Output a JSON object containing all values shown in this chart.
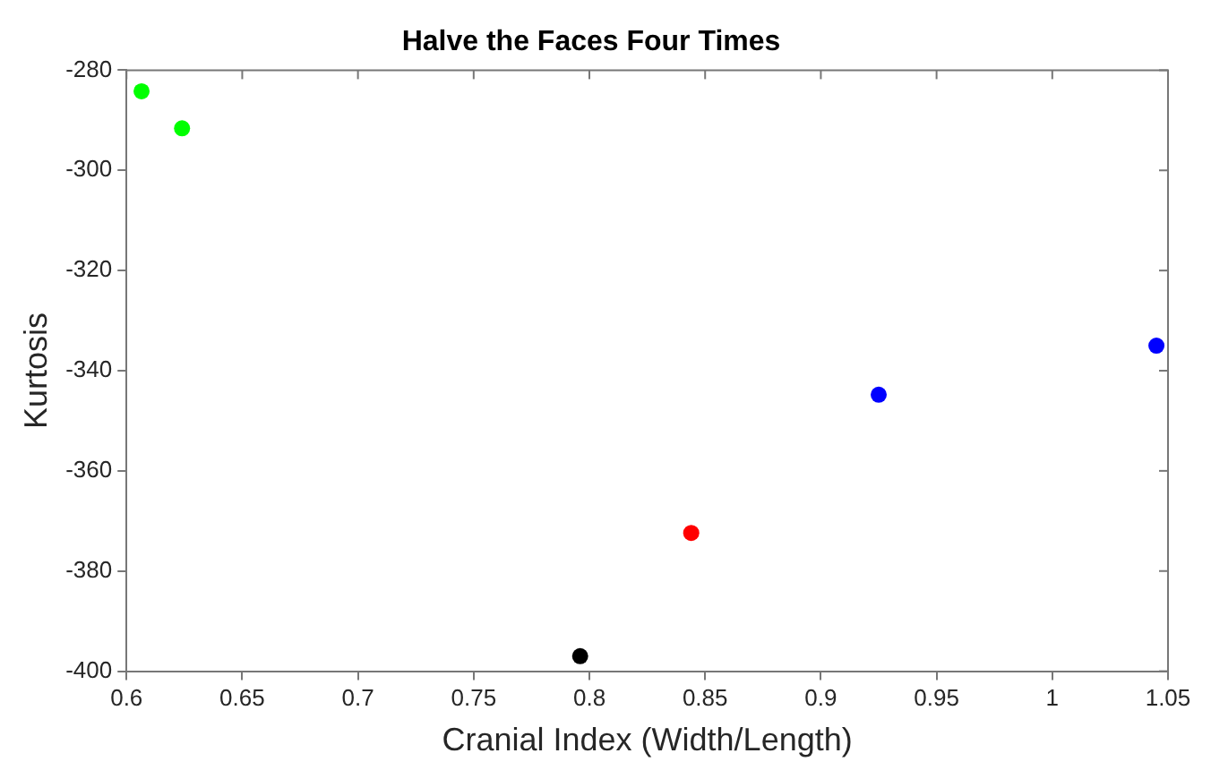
{
  "chart_data": {
    "type": "scatter",
    "title": "Halve the Faces Four Times",
    "xlabel": "Cranial Index (Width/Length)",
    "ylabel": "Kurtosis",
    "series": [
      {
        "color": "#00ff00",
        "x": [
          0.6065,
          0.624
        ],
        "values": [
          -284.2,
          -291.6
        ]
      },
      {
        "color": "#000000",
        "x": [
          0.796
        ],
        "values": [
          -397.0
        ]
      },
      {
        "color": "#ff0000",
        "x": [
          0.844
        ],
        "values": [
          -372.4
        ]
      },
      {
        "color": "#0000ff",
        "x": [
          0.925,
          1.045
        ],
        "values": [
          -344.8,
          -335.0
        ]
      }
    ],
    "xlim": [
      0.6,
      1.05
    ],
    "xticks": [
      0.6,
      0.65,
      0.7,
      0.75,
      0.8,
      0.85,
      0.9,
      0.95,
      1,
      1.05
    ],
    "ylim": [
      -400,
      -280
    ],
    "yticks": [
      -400,
      -380,
      -360,
      -340,
      -320,
      -300,
      -280
    ],
    "grid": false,
    "legend": false,
    "marker": "circle"
  }
}
